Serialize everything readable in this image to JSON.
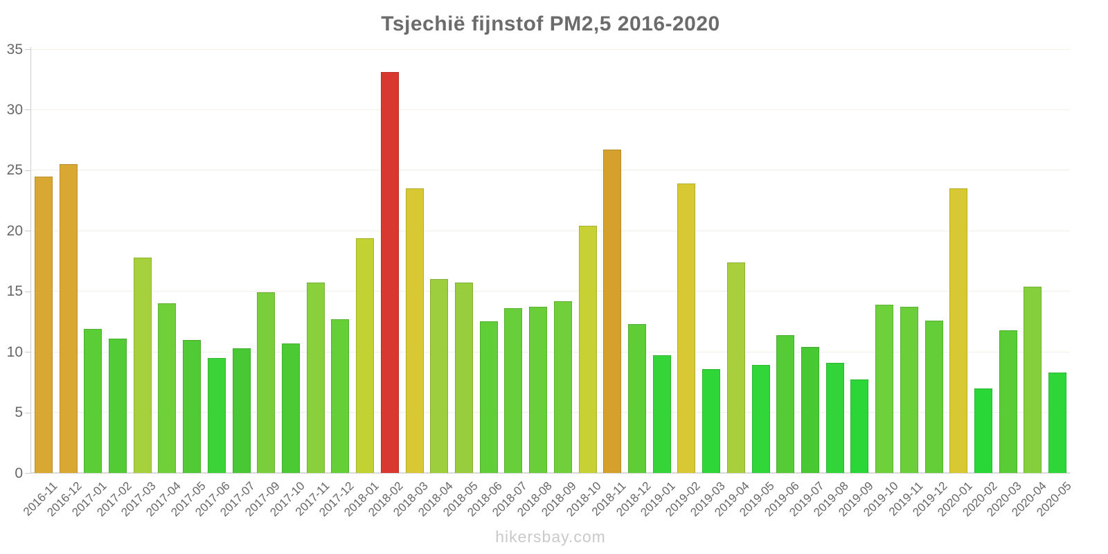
{
  "title": "Tsjechië fijnstof PM2,5 2016-2020",
  "watermark": "hikersbay.com",
  "chart_data": {
    "type": "bar",
    "title": "Tsjechië fijnstof PM2,5 2016-2020",
    "xlabel": "",
    "ylabel": "",
    "ylim": [
      0,
      35
    ],
    "yticks": [
      0,
      5,
      10,
      15,
      20,
      25,
      30,
      35
    ],
    "grid": true,
    "legend": false,
    "x_label_rotation": -45,
    "categories": [
      "2016-11",
      "2016-12",
      "2017-01",
      "2017-02",
      "2017-03",
      "2017-04",
      "2017-05",
      "2017-06",
      "2017-07",
      "2017-09",
      "2017-10",
      "2017-11",
      "2017-12",
      "2018-01",
      "2018-02",
      "2018-03",
      "2018-04",
      "2018-05",
      "2018-06",
      "2018-07",
      "2018-08",
      "2018-09",
      "2018-10",
      "2018-11",
      "2018-12",
      "2019-01",
      "2019-02",
      "2019-03",
      "2019-04",
      "2019-05",
      "2019-06",
      "2019-07",
      "2019-08",
      "2019-09",
      "2019-10",
      "2019-11",
      "2019-12",
      "2020-01",
      "2020-02",
      "2020-03",
      "2020-04",
      "2020-05"
    ],
    "values": [
      24.5,
      25.5,
      11.9,
      11.1,
      17.8,
      14.0,
      11.0,
      9.5,
      10.3,
      14.9,
      10.7,
      15.7,
      12.7,
      19.4,
      33.1,
      23.5,
      16.0,
      15.7,
      12.5,
      13.6,
      13.7,
      14.2,
      20.4,
      26.7,
      12.3,
      9.7,
      23.9,
      8.6,
      17.4,
      8.9,
      11.4,
      10.4,
      9.1,
      7.7,
      13.9,
      13.7,
      12.6,
      23.5,
      7.0,
      11.8,
      15.4,
      8.3
    ],
    "colors": [
      "#D9A833",
      "#D9A833",
      "#5BCD36",
      "#52CB35",
      "#A6D13C",
      "#6FD03A",
      "#51CB35",
      "#3CD339",
      "#48C934",
      "#7BCE3B",
      "#4CCA34",
      "#8ACF3C",
      "#65CF38",
      "#C2D233",
      "#D93831",
      "#D8C934",
      "#9CCE3D",
      "#98CE3D",
      "#60CE37",
      "#68CE39",
      "#69CE39",
      "#70CF3A",
      "#C8D133",
      "#D5A02C",
      "#5ECD36",
      "#35D53A",
      "#D8C934",
      "#2FD638",
      "#A9D03C",
      "#31D639",
      "#55CC35",
      "#48C934",
      "#33D439",
      "#2BD737",
      "#6ED03A",
      "#6ACF39",
      "#63CE38",
      "#D8C934",
      "#29D836",
      "#5ACC36",
      "#85CF3C",
      "#2ED637"
    ],
    "value_color_legend": {
      "red_above": "#D93831",
      "orange_high": "#D9A833",
      "yellow_mid": "#D8C934",
      "lime": "#C2D233",
      "green_low": "#5BCD36",
      "bright_green_lowest": "#2ED637"
    }
  }
}
